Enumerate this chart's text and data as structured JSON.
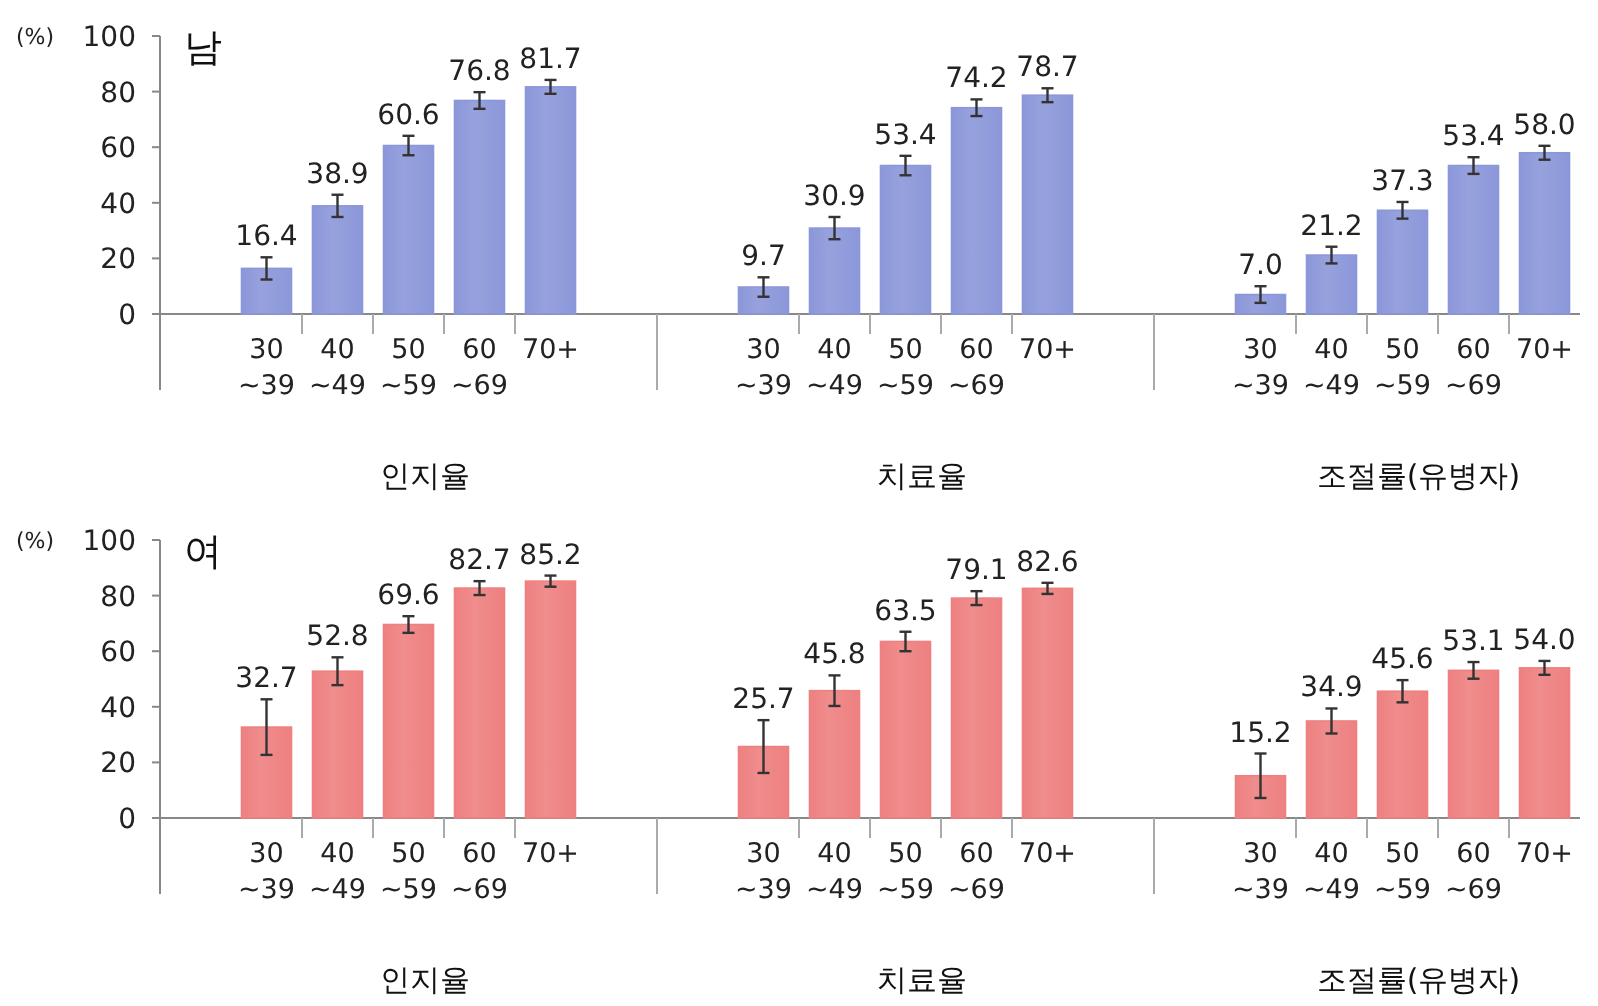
{
  "chart_data": [
    {
      "type": "bar",
      "title": "남",
      "ylabel": "(%)",
      "categories": [
        null,
        "30~39",
        "40~49",
        "50~59",
        "60~69",
        "70+",
        null,
        null,
        "30~39",
        "40~49",
        "50~59",
        "60~69",
        "70+",
        null,
        null,
        "30~39",
        "40~49",
        "50~59",
        "60~69",
        "70+"
      ],
      "values": [
        null,
        16.4,
        38.9,
        60.6,
        76.8,
        81.7,
        null,
        null,
        9.7,
        30.9,
        53.4,
        74.2,
        78.7,
        null,
        null,
        7.0,
        21.2,
        37.3,
        53.4,
        58.0
      ],
      "value_labels": [
        null,
        "16.4",
        "38.9",
        "60.6",
        "76.8",
        "81.7",
        null,
        null,
        "9.7",
        "30.9",
        "53.4",
        "74.2",
        "78.7",
        null,
        null,
        "7.0",
        "21.2",
        "37.3",
        "53.4",
        "58.0"
      ],
      "errors": [
        null,
        4,
        4,
        3.5,
        3,
        2.5,
        null,
        null,
        3.5,
        4,
        3.5,
        3,
        2.5,
        null,
        null,
        3,
        3,
        3,
        3,
        2.5
      ],
      "color": "#8b97d9",
      "ylim": [
        0,
        100
      ],
      "yticks": [
        0,
        20,
        40,
        60,
        80,
        100
      ],
      "annotations": [
        "인지율",
        "치료율",
        "조절률(유병자)"
      ]
    },
    {
      "type": "bar",
      "title": "여",
      "ylabel": "(%)",
      "categories": [
        null,
        "30~39",
        "40~49",
        "50~59",
        "60~69",
        "70+",
        null,
        null,
        "30~39",
        "40~49",
        "50~59",
        "60~69",
        "70+",
        null,
        null,
        "30~39",
        "40~49",
        "50~59",
        "60~69",
        "70+"
      ],
      "values": [
        null,
        32.7,
        52.8,
        69.6,
        82.7,
        85.2,
        null,
        null,
        25.7,
        45.8,
        63.5,
        79.1,
        82.6,
        null,
        null,
        15.2,
        34.9,
        45.6,
        53.1,
        54.0
      ],
      "value_labels": [
        null,
        "32.7",
        "52.8",
        "69.6",
        "82.7",
        "85.2",
        null,
        null,
        "25.7",
        "45.8",
        "63.5",
        "79.1",
        "82.6",
        null,
        null,
        "15.2",
        "34.9",
        "45.6",
        "53.1",
        "54.0"
      ],
      "errors": [
        null,
        10,
        5,
        3,
        2.5,
        2,
        null,
        null,
        9.5,
        5.5,
        3.5,
        2.5,
        2,
        null,
        null,
        8,
        4.5,
        4,
        3,
        2.5
      ],
      "color": "#ee8080",
      "ylim": [
        0,
        100
      ],
      "yticks": [
        0,
        20,
        40,
        60,
        80,
        100
      ],
      "annotations": [
        "인지율",
        "치료율",
        "조절률(유병자)"
      ]
    }
  ]
}
